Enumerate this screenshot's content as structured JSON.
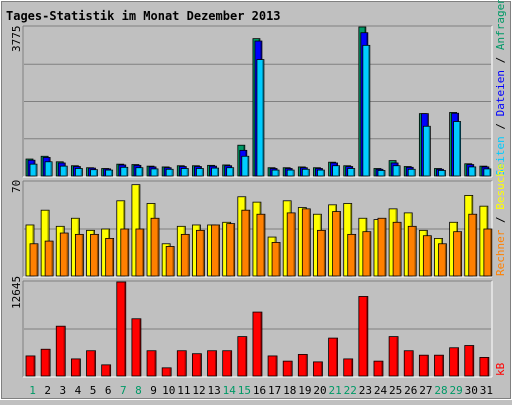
{
  "title": "Tages-Statistik im Monat Dezember 2013",
  "colors": {
    "background": "#c0c0c0",
    "title": "#0000ff",
    "hits": "#009966",
    "files": "#0000ff",
    "pages": "#00ccff",
    "visits": "#ffff00",
    "sites": "#ff8000",
    "kbytes": "#ff0000",
    "weekend_day": "#009966",
    "weekday": "#000000",
    "gridline": "#808080"
  },
  "chart_data": [
    {
      "type": "bar",
      "name": "hits-files-pages",
      "ymax_label": "3775",
      "ylim": [
        0,
        3775
      ],
      "legend": [
        "Anfragen",
        "Dateien",
        "Seiten"
      ],
      "categories": [
        "1",
        "2",
        "3",
        "4",
        "5",
        "6",
        "7",
        "8",
        "9",
        "10",
        "11",
        "12",
        "13",
        "14",
        "15",
        "16",
        "17",
        "18",
        "19",
        "20",
        "21",
        "22",
        "23",
        "24",
        "25",
        "26",
        "27",
        "28",
        "29",
        "30",
        "31"
      ],
      "series": [
        {
          "name": "Anfragen",
          "values": [
            430,
            500,
            360,
            260,
            210,
            190,
            300,
            290,
            250,
            230,
            260,
            260,
            270,
            280,
            780,
            3480,
            210,
            210,
            230,
            210,
            350,
            260,
            3775,
            190,
            390,
            240,
            1580,
            190,
            1610,
            310,
            250
          ]
        },
        {
          "name": "Dateien",
          "values": [
            400,
            470,
            330,
            240,
            200,
            180,
            280,
            270,
            230,
            210,
            240,
            240,
            250,
            260,
            650,
            3420,
            190,
            190,
            210,
            190,
            330,
            240,
            3630,
            170,
            330,
            220,
            1580,
            170,
            1590,
            290,
            230
          ]
        },
        {
          "name": "Seiten",
          "values": [
            300,
            360,
            250,
            190,
            160,
            150,
            220,
            210,
            180,
            170,
            190,
            190,
            200,
            210,
            500,
            2950,
            150,
            150,
            170,
            150,
            260,
            190,
            3310,
            140,
            260,
            170,
            1260,
            140,
            1380,
            230,
            180
          ]
        }
      ]
    },
    {
      "type": "bar",
      "name": "visits-sites",
      "ymax_label": "70",
      "ylim": [
        0,
        70
      ],
      "legend": [
        "Besuche",
        "Rechner"
      ],
      "categories": [
        "1",
        "2",
        "3",
        "4",
        "5",
        "6",
        "7",
        "8",
        "9",
        "10",
        "11",
        "12",
        "13",
        "14",
        "15",
        "16",
        "17",
        "18",
        "19",
        "20",
        "21",
        "22",
        "23",
        "24",
        "25",
        "26",
        "27",
        "28",
        "29",
        "30",
        "31"
      ],
      "series": [
        {
          "name": "Besuche",
          "values": [
            38,
            49,
            37,
            43,
            34,
            35,
            56,
            68,
            54,
            24,
            37,
            38,
            38,
            40,
            59,
            55,
            29,
            56,
            51,
            46,
            53,
            54,
            43,
            42,
            50,
            47,
            34,
            28,
            40,
            60,
            52
          ]
        },
        {
          "name": "Rechner",
          "values": [
            24,
            26,
            32,
            31,
            31,
            28,
            35,
            35,
            43,
            22,
            31,
            34,
            38,
            39,
            49,
            46,
            25,
            47,
            50,
            34,
            48,
            31,
            33,
            43,
            40,
            37,
            30,
            24,
            33,
            46,
            35
          ]
        }
      ]
    },
    {
      "type": "bar",
      "name": "kbytes",
      "ymax_label": "12645",
      "ylim": [
        0,
        12645
      ],
      "legend": [
        "kB"
      ],
      "categories": [
        "1",
        "2",
        "3",
        "4",
        "5",
        "6",
        "7",
        "8",
        "9",
        "10",
        "11",
        "12",
        "13",
        "14",
        "15",
        "16",
        "17",
        "18",
        "19",
        "20",
        "21",
        "22",
        "23",
        "24",
        "25",
        "26",
        "27",
        "28",
        "29",
        "30",
        "31"
      ],
      "series": [
        {
          "name": "kB",
          "values": [
            2700,
            3600,
            6700,
            2300,
            3400,
            1500,
            12645,
            7700,
            3400,
            1100,
            3400,
            3000,
            3400,
            3400,
            5300,
            8600,
            2700,
            2000,
            2900,
            1900,
            5100,
            2300,
            10700,
            2000,
            5300,
            3400,
            2800,
            2800,
            3800,
            4100,
            2500
          ]
        }
      ]
    }
  ],
  "weekend_days": [
    1,
    7,
    8,
    14,
    15,
    21,
    22,
    28,
    29
  ]
}
